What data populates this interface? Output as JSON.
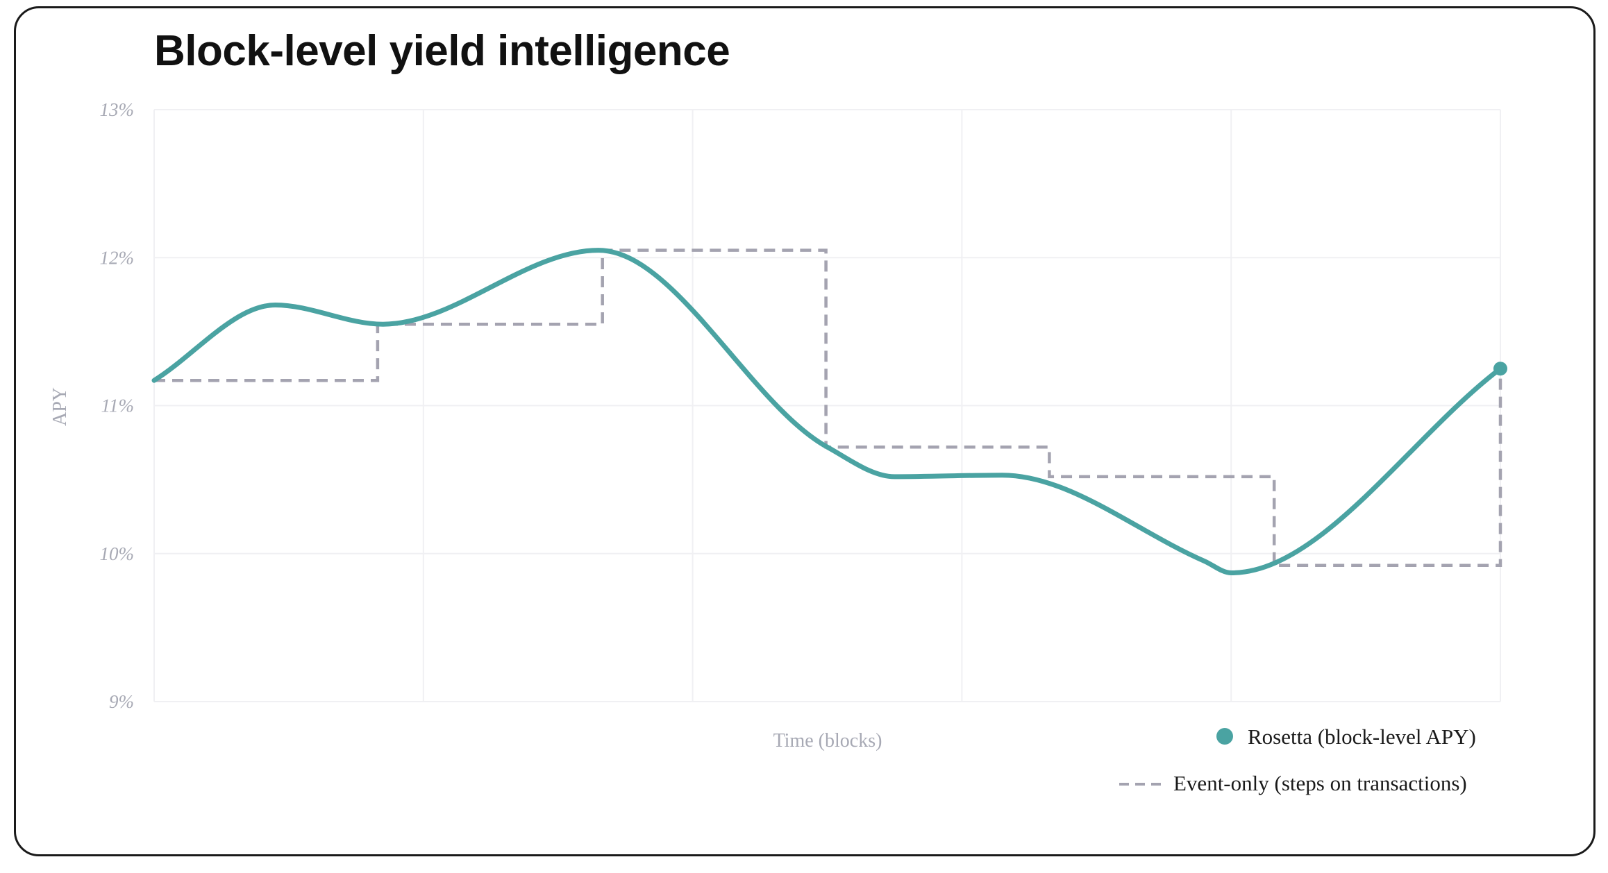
{
  "title": "Block-level yield intelligence",
  "chart_data": {
    "type": "line",
    "title": "Block-level yield intelligence",
    "xlabel": "Time (blocks)",
    "ylabel": "APY",
    "ylim": [
      9,
      13
    ],
    "xlim": [
      0,
      100
    ],
    "y_ticks": [
      "9%",
      "10%",
      "11%",
      "12%",
      "13%"
    ],
    "grid": true,
    "legend_position": "bottom-right",
    "colors": {
      "rosetta": "#4aa3a2",
      "event": "#a4a3b0",
      "grid": "#f0f0f3"
    },
    "series": [
      {
        "name": "Rosetta (block-level APY)",
        "style": "smooth-line",
        "end_marker": true,
        "x": [
          0,
          9,
          17,
          33,
          50,
          55,
          63,
          78,
          80,
          100
        ],
        "y": [
          11.17,
          11.68,
          11.55,
          12.05,
          10.72,
          10.52,
          10.53,
          9.95,
          9.87,
          11.25
        ]
      },
      {
        "name": "Event-only (steps on transactions)",
        "style": "dashed-step",
        "x": [
          0,
          16.6,
          33.3,
          49.9,
          66.5,
          83.2,
          100
        ],
        "y": [
          11.17,
          11.55,
          12.05,
          10.72,
          10.52,
          9.92,
          11.25
        ]
      }
    ]
  }
}
